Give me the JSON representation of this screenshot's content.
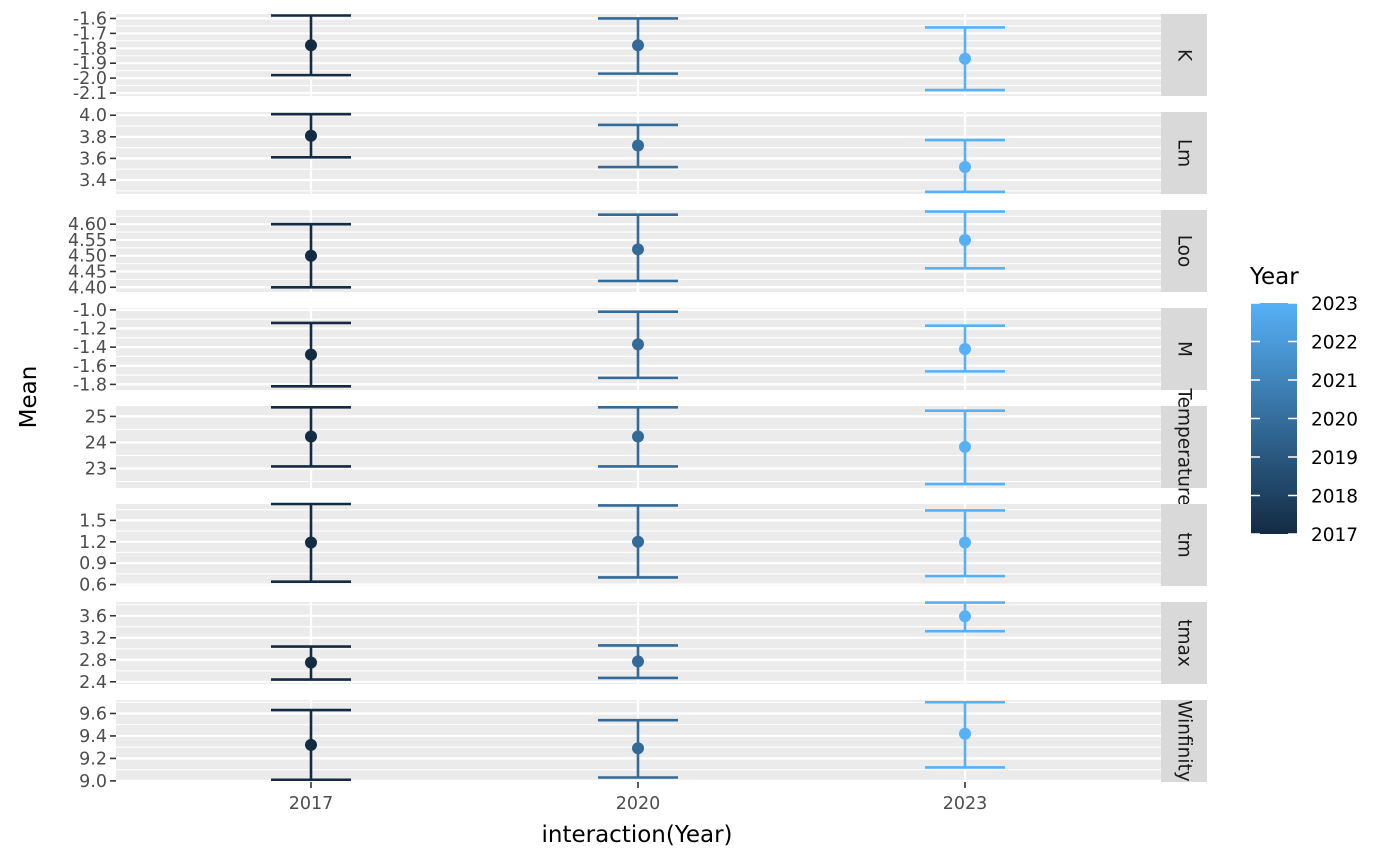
{
  "chart_data": {
    "type": "scatter",
    "subtype": "faceted point-range (mean with error bars)",
    "xlabel": "interaction(Year)",
    "ylabel": "Mean",
    "categories": [
      "2017",
      "2020",
      "2023"
    ],
    "legend": {
      "title": "Year",
      "placement": "right",
      "type": "colorbar",
      "range": [
        2017,
        2023
      ],
      "ticks": [
        "2017",
        "2018",
        "2019",
        "2020",
        "2021",
        "2022",
        "2023"
      ],
      "colors": {
        "low": "#132b43",
        "high": "#56b1f7"
      }
    },
    "colors": {
      "2017": "#132b43",
      "2020": "#336a98",
      "2023": "#56b1f7"
    },
    "panel_background": "#ebebeb",
    "strip_background": "#d9d9d9",
    "grid": true,
    "facets": [
      {
        "label": "K",
        "ylim": [
          -2.12,
          -1.57
        ],
        "ticks": [
          -1.6,
          -1.7,
          -1.8,
          -1.9,
          -2.0,
          -2.1
        ],
        "tick_labels": [
          "-1.6",
          "-1.7",
          "-1.8",
          "-1.9",
          "-2.0",
          "-2.1"
        ],
        "points": [
          {
            "x": "2017",
            "mean": -1.78,
            "lower": -1.98,
            "upper": -1.58
          },
          {
            "x": "2020",
            "mean": -1.78,
            "lower": -1.97,
            "upper": -1.6
          },
          {
            "x": "2023",
            "mean": -1.87,
            "lower": -2.08,
            "upper": -1.66
          }
        ]
      },
      {
        "label": "Lm",
        "ylim": [
          3.27,
          4.03
        ],
        "ticks": [
          3.4,
          3.6,
          3.8,
          4.0
        ],
        "tick_labels": [
          "3.4",
          "3.6",
          "3.8",
          "4.0"
        ],
        "points": [
          {
            "x": "2017",
            "mean": 3.81,
            "lower": 3.61,
            "upper": 4.01
          },
          {
            "x": "2020",
            "mean": 3.72,
            "lower": 3.52,
            "upper": 3.91
          },
          {
            "x": "2023",
            "mean": 3.52,
            "lower": 3.29,
            "upper": 3.77
          }
        ]
      },
      {
        "label": "Loo",
        "ylim": [
          4.385,
          4.645
        ],
        "ticks": [
          4.4,
          4.45,
          4.5,
          4.55,
          4.6
        ],
        "tick_labels": [
          "4.40",
          "4.45",
          "4.50",
          "4.55",
          "4.60"
        ],
        "points": [
          {
            "x": "2017",
            "mean": 4.5,
            "lower": 4.4,
            "upper": 4.6
          },
          {
            "x": "2020",
            "mean": 4.52,
            "lower": 4.42,
            "upper": 4.63
          },
          {
            "x": "2023",
            "mean": 4.55,
            "lower": 4.46,
            "upper": 4.64
          }
        ]
      },
      {
        "label": "M",
        "ylim": [
          -1.86,
          -0.98
        ],
        "ticks": [
          -1.0,
          -1.2,
          -1.4,
          -1.6,
          -1.8
        ],
        "tick_labels": [
          "-1.0",
          "-1.2",
          "-1.4",
          "-1.6",
          "-1.8"
        ],
        "points": [
          {
            "x": "2017",
            "mean": -1.48,
            "lower": -1.82,
            "upper": -1.14
          },
          {
            "x": "2020",
            "mean": -1.37,
            "lower": -1.73,
            "upper": -1.02
          },
          {
            "x": "2023",
            "mean": -1.42,
            "lower": -1.66,
            "upper": -1.17
          }
        ]
      },
      {
        "label": "Temperature",
        "ylim": [
          22.25,
          25.4
        ],
        "ticks": [
          23,
          24,
          25
        ],
        "tick_labels": [
          "23",
          "24",
          "25"
        ],
        "points": [
          {
            "x": "2017",
            "mean": 24.23,
            "lower": 23.08,
            "upper": 25.35
          },
          {
            "x": "2020",
            "mean": 24.23,
            "lower": 23.08,
            "upper": 25.35
          },
          {
            "x": "2023",
            "mean": 23.83,
            "lower": 22.4,
            "upper": 25.22
          }
        ]
      },
      {
        "label": "tm",
        "ylim": [
          0.58,
          1.73
        ],
        "ticks": [
          0.6,
          0.9,
          1.2,
          1.5
        ],
        "tick_labels": [
          "0.6",
          "0.9",
          "1.2",
          "1.5"
        ],
        "points": [
          {
            "x": "2017",
            "mean": 1.19,
            "lower": 0.64,
            "upper": 1.73
          },
          {
            "x": "2020",
            "mean": 1.2,
            "lower": 0.7,
            "upper": 1.71
          },
          {
            "x": "2023",
            "mean": 1.19,
            "lower": 0.72,
            "upper": 1.64
          }
        ]
      },
      {
        "label": "tmax",
        "ylim": [
          2.36,
          3.85
        ],
        "ticks": [
          2.4,
          2.8,
          3.2,
          3.6
        ],
        "tick_labels": [
          "2.4",
          "2.8",
          "3.2",
          "3.6"
        ],
        "points": [
          {
            "x": "2017",
            "mean": 2.75,
            "lower": 2.44,
            "upper": 3.04
          },
          {
            "x": "2020",
            "mean": 2.77,
            "lower": 2.47,
            "upper": 3.06
          },
          {
            "x": "2023",
            "mean": 3.59,
            "lower": 3.32,
            "upper": 3.84
          }
        ]
      },
      {
        "label": "Winfinity",
        "ylim": [
          8.99,
          9.72
        ],
        "ticks": [
          9.0,
          9.2,
          9.4,
          9.6
        ],
        "tick_labels": [
          "9.0",
          "9.2",
          "9.4",
          "9.6"
        ],
        "points": [
          {
            "x": "2017",
            "mean": 9.32,
            "lower": 9.01,
            "upper": 9.63
          },
          {
            "x": "2020",
            "mean": 9.29,
            "lower": 9.03,
            "upper": 9.54
          },
          {
            "x": "2023",
            "mean": 9.42,
            "lower": 9.12,
            "upper": 9.7
          }
        ]
      }
    ]
  }
}
